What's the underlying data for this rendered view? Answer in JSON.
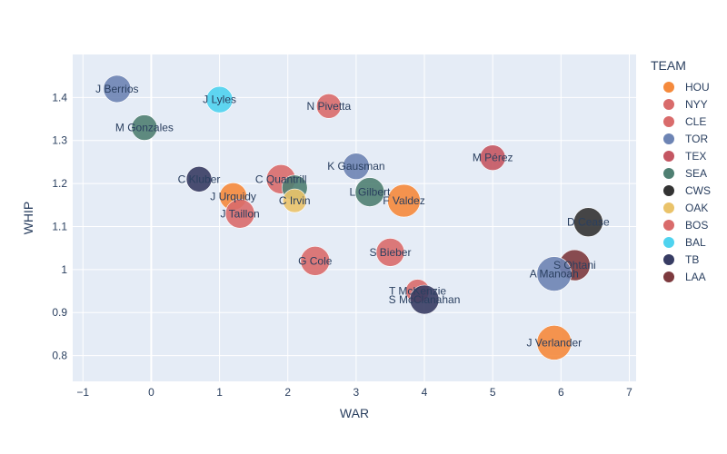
{
  "chart_data": {
    "type": "scatter",
    "xlabel": "WAR",
    "ylabel": "WHIP",
    "xlim": [
      -1.15,
      7.1
    ],
    "ylim": [
      0.74,
      1.5
    ],
    "x_ticks": [
      "−1",
      "0",
      "1",
      "2",
      "3",
      "4",
      "5",
      "6",
      "7"
    ],
    "x_tick_values": [
      -1,
      0,
      1,
      2,
      3,
      4,
      5,
      6,
      7
    ],
    "y_ticks": [
      "0.8",
      "0.9",
      "1",
      "1.1",
      "1.2",
      "1.3",
      "1.4"
    ],
    "y_tick_values": [
      0.8,
      0.9,
      1.0,
      1.1,
      1.2,
      1.3,
      1.4
    ],
    "grid": true,
    "legend_title": "TEAM",
    "legend_position": "right",
    "series": [
      {
        "name": "HOU",
        "color": "#f58a3c"
      },
      {
        "name": "NYY",
        "color": "#d96b6b"
      },
      {
        "name": "CLE",
        "color": "#d96b6b"
      },
      {
        "name": "TOR",
        "color": "#6d84b4"
      },
      {
        "name": "TEX",
        "color": "#c45662"
      },
      {
        "name": "SEA",
        "color": "#4f7f72"
      },
      {
        "name": "CWS",
        "color": "#333333"
      },
      {
        "name": "OAK",
        "color": "#eac36a"
      },
      {
        "name": "BOS",
        "color": "#d96b6b"
      },
      {
        "name": "BAL",
        "color": "#4fd3ef"
      },
      {
        "name": "TB",
        "color": "#373c63"
      },
      {
        "name": "LAA",
        "color": "#7d3a3e"
      }
    ],
    "points": [
      {
        "label": "J Berrios",
        "team": "TOR",
        "x": -0.5,
        "y": 1.42,
        "size": 3.0
      },
      {
        "label": "J Lyles",
        "team": "BAL",
        "x": 1.0,
        "y": 1.395,
        "size": 2.9
      },
      {
        "label": "N Pivetta",
        "team": "BOS",
        "x": 2.6,
        "y": 1.38,
        "size": 2.7
      },
      {
        "label": "M Gonzales",
        "team": "SEA",
        "x": -0.1,
        "y": 1.33,
        "size": 2.8
      },
      {
        "label": "M Pérez",
        "team": "TEX",
        "x": 5.0,
        "y": 1.26,
        "size": 2.8
      },
      {
        "label": "K Gausman",
        "team": "TOR",
        "x": 3.0,
        "y": 1.24,
        "size": 2.9
      },
      {
        "label": "C Kluber",
        "team": "TB",
        "x": 0.7,
        "y": 1.21,
        "size": 2.8
      },
      {
        "label": "C Quantrill",
        "team": "CLE",
        "x": 1.9,
        "y": 1.21,
        "size": 3.2
      },
      {
        "label": "",
        "team": "SEA",
        "x": 2.1,
        "y": 1.19,
        "size": 2.8
      },
      {
        "label": "L Gilbert",
        "team": "SEA",
        "x": 3.2,
        "y": 1.18,
        "size": 3.2
      },
      {
        "label": "F Valdez",
        "team": "HOU",
        "x": 3.7,
        "y": 1.16,
        "size": 3.6
      },
      {
        "label": "J Urquidy",
        "team": "HOU",
        "x": 1.2,
        "y": 1.17,
        "size": 3.0
      },
      {
        "label": "C Irvin",
        "team": "OAK",
        "x": 2.1,
        "y": 1.16,
        "size": 2.6
      },
      {
        "label": "J Taillon",
        "team": "NYY",
        "x": 1.3,
        "y": 1.13,
        "size": 3.2
      },
      {
        "label": "D Cease",
        "team": "CWS",
        "x": 6.4,
        "y": 1.11,
        "size": 3.2
      },
      {
        "label": "S Bieber",
        "team": "CLE",
        "x": 3.5,
        "y": 1.04,
        "size": 3.1
      },
      {
        "label": "G Cole",
        "team": "NYY",
        "x": 2.4,
        "y": 1.02,
        "size": 3.2
      },
      {
        "label": "S Ohtani",
        "team": "LAA",
        "x": 6.2,
        "y": 1.01,
        "size": 3.4
      },
      {
        "label": "A Manoah",
        "team": "TOR",
        "x": 5.9,
        "y": 0.99,
        "size": 3.8
      },
      {
        "label": "T McKenzie",
        "team": "CLE",
        "x": 3.9,
        "y": 0.95,
        "size": 2.6
      },
      {
        "label": "S McClanahan",
        "team": "TB",
        "x": 4.0,
        "y": 0.93,
        "size": 3.2
      },
      {
        "label": "J Verlander",
        "team": "HOU",
        "x": 5.9,
        "y": 0.83,
        "size": 3.8
      }
    ]
  }
}
